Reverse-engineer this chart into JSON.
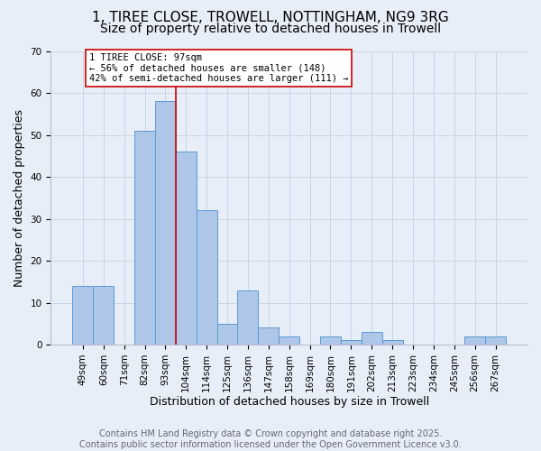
{
  "title_line1": "1, TIREE CLOSE, TROWELL, NOTTINGHAM, NG9 3RG",
  "title_line2": "Size of property relative to detached houses in Trowell",
  "xlabel": "Distribution of detached houses by size in Trowell",
  "ylabel": "Number of detached properties",
  "categories": [
    "49sqm",
    "60sqm",
    "71sqm",
    "82sqm",
    "93sqm",
    "104sqm",
    "114sqm",
    "125sqm",
    "136sqm",
    "147sqm",
    "158sqm",
    "169sqm",
    "180sqm",
    "191sqm",
    "202sqm",
    "213sqm",
    "223sqm",
    "234sqm",
    "245sqm",
    "256sqm",
    "267sqm"
  ],
  "values": [
    14,
    14,
    0,
    51,
    58,
    46,
    32,
    5,
    13,
    4,
    2,
    0,
    2,
    1,
    3,
    1,
    0,
    0,
    0,
    2,
    2
  ],
  "bar_color": "#aec6e8",
  "bar_edge_color": "#5b9bd5",
  "bar_width": 1.0,
  "red_line_x": 4.5,
  "annotation_line1": "1 TIREE CLOSE: 97sqm",
  "annotation_line2": "← 56% of detached houses are smaller (148)",
  "annotation_line3": "42% of semi-detached houses are larger (111) →",
  "annotation_box_color": "white",
  "annotation_box_edge_color": "#cc0000",
  "red_line_color": "#cc0000",
  "ylim": [
    0,
    70
  ],
  "yticks": [
    0,
    10,
    20,
    30,
    40,
    50,
    60,
    70
  ],
  "grid_color": "#c8d4e8",
  "background_color": "#e8eef8",
  "footer_text": "Contains HM Land Registry data © Crown copyright and database right 2025.\nContains public sector information licensed under the Open Government Licence v3.0.",
  "title_fontsize": 11,
  "subtitle_fontsize": 10,
  "label_fontsize": 9,
  "tick_fontsize": 7.5,
  "annotation_fontsize": 7.5,
  "footer_fontsize": 7
}
